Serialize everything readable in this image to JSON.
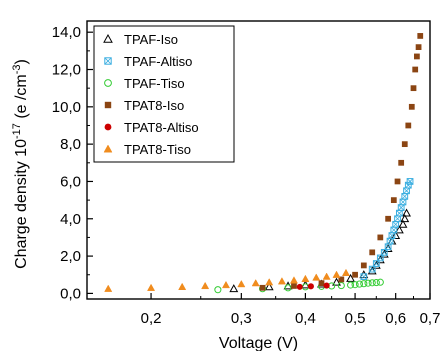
{
  "chart_data": {
    "type": "scatter",
    "xlabel": "Voltage (V)",
    "ylabel": "Charge density 10",
    "ylabel_sup": "-17",
    "ylabel_units": " (e /cm",
    "ylabel_units_sup": "-3",
    "ylabel_close": ")",
    "x_scale": "log",
    "xlim": [
      0.15,
      0.7
    ],
    "ylim": [
      -0.3,
      14.6
    ],
    "x_ticks": [
      0.2,
      0.3,
      0.4,
      0.5,
      0.6,
      0.7
    ],
    "x_tick_labels": [
      "0,2",
      "0,3",
      "0,4",
      "0,5",
      "0,6",
      "0,7"
    ],
    "y_ticks": [
      0,
      2,
      4,
      6,
      8,
      10,
      12,
      14
    ],
    "y_tick_labels": [
      "0,0",
      "2,0",
      "4,0",
      "6,0",
      "8,0",
      "10,0",
      "12,0",
      "14,0"
    ],
    "legend_position": "top-left",
    "series": [
      {
        "name": "TPAF-Iso",
        "marker": "triangle-open",
        "color": "#000000",
        "x": [
          0.29,
          0.34,
          0.37,
          0.4,
          0.43,
          0.46,
          0.49,
          0.52,
          0.54,
          0.55,
          0.56,
          0.57,
          0.58,
          0.59,
          0.6,
          0.61,
          0.62,
          0.625,
          0.63
        ],
        "y": [
          0.25,
          0.35,
          0.4,
          0.45,
          0.5,
          0.6,
          0.8,
          1.0,
          1.2,
          1.5,
          1.8,
          2.1,
          2.4,
          2.8,
          3.1,
          3.4,
          3.7,
          4.0,
          4.3
        ]
      },
      {
        "name": "TPAF-Altiso",
        "marker": "square-cross",
        "color": "#3aaee0",
        "x": [
          0.52,
          0.54,
          0.55,
          0.56,
          0.57,
          0.58,
          0.585,
          0.59,
          0.595,
          0.6,
          0.605,
          0.61,
          0.615,
          0.62,
          0.625,
          0.63,
          0.635,
          0.64
        ],
        "y": [
          0.9,
          1.3,
          1.6,
          1.9,
          2.2,
          2.5,
          2.8,
          3.1,
          3.4,
          3.7,
          4.0,
          4.3,
          4.6,
          4.9,
          5.2,
          5.5,
          5.8,
          6.0
        ]
      },
      {
        "name": "TPAF-Tiso",
        "marker": "circle-open",
        "color": "#33cc33",
        "x": [
          0.27,
          0.33,
          0.37,
          0.4,
          0.43,
          0.45,
          0.47,
          0.49,
          0.5,
          0.51,
          0.52,
          0.53,
          0.54,
          0.55,
          0.56
        ],
        "y": [
          0.2,
          0.25,
          0.3,
          0.35,
          0.38,
          0.4,
          0.42,
          0.45,
          0.47,
          0.5,
          0.52,
          0.55,
          0.57,
          0.58,
          0.6
        ]
      },
      {
        "name": "TPAT8-Iso",
        "marker": "square-filled",
        "color": "#8b4513",
        "x": [
          0.33,
          0.38,
          0.43,
          0.47,
          0.5,
          0.52,
          0.54,
          0.56,
          0.58,
          0.595,
          0.605,
          0.615,
          0.625,
          0.635,
          0.645,
          0.65,
          0.655,
          0.66,
          0.665,
          0.67
        ],
        "y": [
          0.3,
          0.4,
          0.55,
          0.75,
          1.0,
          1.5,
          2.2,
          3.0,
          4.0,
          5.0,
          6.0,
          7.0,
          8.0,
          9.0,
          10.0,
          11.0,
          12.0,
          12.7,
          13.2,
          13.8
        ]
      },
      {
        "name": "TPAT8-Altiso",
        "marker": "circle-filled",
        "color": "#cc0000",
        "x": [
          0.39,
          0.41,
          0.44
        ],
        "y": [
          0.35,
          0.38,
          0.42
        ]
      },
      {
        "name": "TPAT8-Tiso",
        "marker": "triangle-filled",
        "color": "#f08c1e",
        "x": [
          0.165,
          0.2,
          0.23,
          0.255,
          0.28,
          0.3,
          0.32,
          0.34,
          0.36,
          0.38,
          0.4,
          0.42,
          0.44,
          0.46,
          0.48
        ],
        "y": [
          0.25,
          0.3,
          0.35,
          0.4,
          0.45,
          0.5,
          0.55,
          0.6,
          0.65,
          0.7,
          0.78,
          0.85,
          0.9,
          1.0,
          1.1
        ]
      }
    ]
  }
}
